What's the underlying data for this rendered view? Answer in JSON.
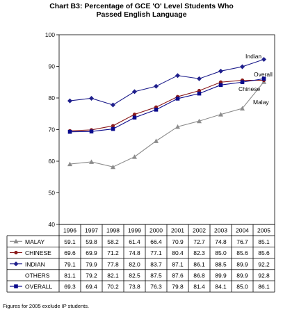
{
  "title": "Chart B3:  Percentage of GCE 'O' Level Students Who",
  "subtitle": "Passed English Language",
  "footnote": "Figures for 2005 exclude IP students.",
  "chart_data": {
    "type": "line",
    "title": "Chart B3:  Percentage of GCE 'O' Level Students Who Passed English Language",
    "x": [
      "1996",
      "1997",
      "1998",
      "1999",
      "2000",
      "2001",
      "2002",
      "2003",
      "2004",
      "2005"
    ],
    "ylim": [
      40,
      100
    ],
    "yticks": [
      40,
      50,
      60,
      70,
      80,
      90,
      100
    ],
    "grid": false,
    "series": [
      {
        "name": "MALAY",
        "color": "#8c8c8c",
        "marker": "triangle",
        "values": [
          59.1,
          59.8,
          58.2,
          61.4,
          66.4,
          70.9,
          72.7,
          74.8,
          76.7,
          85.1
        ]
      },
      {
        "name": "CHINESE",
        "color": "#8b1a1a",
        "marker": "circle",
        "values": [
          69.6,
          69.9,
          71.2,
          74.8,
          77.1,
          80.4,
          82.3,
          85.0,
          85.6,
          85.6
        ]
      },
      {
        "name": "INDIAN",
        "color": "#1f1f8c",
        "marker": "diamond",
        "values": [
          79.1,
          79.9,
          77.8,
          82.0,
          83.7,
          87.1,
          86.1,
          88.5,
          89.9,
          92.2
        ]
      },
      {
        "name": "OTHERS",
        "color": "none",
        "marker": "none",
        "values": [
          81.1,
          79.2,
          82.1,
          82.5,
          87.5,
          87.6,
          86.8,
          89.9,
          89.9,
          92.8
        ]
      },
      {
        "name": "OVERALL",
        "color": "#0a0a8c",
        "marker": "square",
        "values": [
          69.3,
          69.4,
          70.2,
          73.8,
          76.3,
          79.8,
          81.4,
          84.1,
          85.0,
          86.1
        ]
      }
    ],
    "annotations": [
      "Indian",
      "Overall",
      "Chinese",
      "Malay"
    ]
  }
}
